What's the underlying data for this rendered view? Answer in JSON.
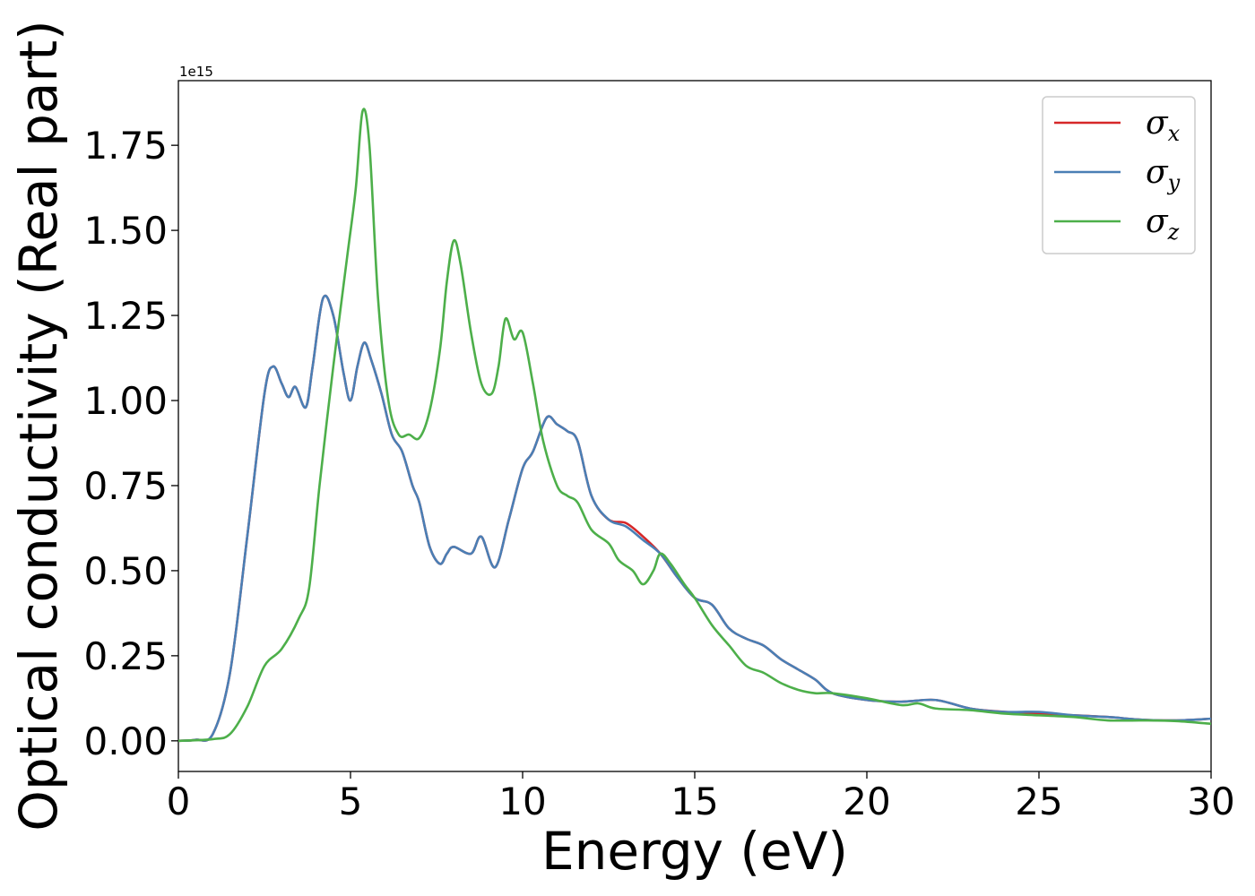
{
  "chart_data": {
    "type": "line",
    "title": "",
    "xlabel": "Energy (eV)",
    "ylabel": "Optical conductivity (Real part)",
    "y_offset_text": "1e15",
    "xlim": [
      0,
      30
    ],
    "ylim": [
      -0.09,
      1.94
    ],
    "x_ticks": [
      0,
      5,
      10,
      15,
      20,
      25,
      30
    ],
    "x_tick_labels": [
      "0",
      "5",
      "10",
      "15",
      "20",
      "25",
      "30"
    ],
    "y_ticks": [
      0.0,
      0.25,
      0.5,
      0.75,
      1.0,
      1.25,
      1.5,
      1.75
    ],
    "y_tick_labels": [
      "0.00",
      "0.25",
      "0.50",
      "0.75",
      "1.00",
      "1.25",
      "1.50",
      "1.75"
    ],
    "grid": false,
    "legend_position": "top-right",
    "series": [
      {
        "name": "σ_x",
        "legend_symbol": "σ",
        "legend_subscript": "x",
        "color": "#d62728",
        "points": [
          [
            0,
            0
          ],
          [
            0.5,
            0.003
          ],
          [
            1.0,
            0.02
          ],
          [
            1.5,
            0.2
          ],
          [
            2.0,
            0.6
          ],
          [
            2.5,
            1.02
          ],
          [
            2.75,
            1.1
          ],
          [
            3.0,
            1.05
          ],
          [
            3.2,
            1.01
          ],
          [
            3.4,
            1.04
          ],
          [
            3.7,
            0.98
          ],
          [
            3.9,
            1.1
          ],
          [
            4.2,
            1.3
          ],
          [
            4.5,
            1.25
          ],
          [
            4.8,
            1.08
          ],
          [
            5.0,
            1.0
          ],
          [
            5.2,
            1.1
          ],
          [
            5.4,
            1.17
          ],
          [
            5.6,
            1.12
          ],
          [
            5.9,
            1.02
          ],
          [
            6.2,
            0.9
          ],
          [
            6.5,
            0.85
          ],
          [
            6.8,
            0.75
          ],
          [
            7.0,
            0.7
          ],
          [
            7.3,
            0.57
          ],
          [
            7.6,
            0.52
          ],
          [
            7.8,
            0.55
          ],
          [
            8.0,
            0.57
          ],
          [
            8.5,
            0.55
          ],
          [
            8.8,
            0.6
          ],
          [
            9.2,
            0.51
          ],
          [
            9.6,
            0.65
          ],
          [
            10.0,
            0.8
          ],
          [
            10.3,
            0.85
          ],
          [
            10.7,
            0.95
          ],
          [
            11.0,
            0.93
          ],
          [
            11.3,
            0.91
          ],
          [
            11.6,
            0.88
          ],
          [
            12.0,
            0.72
          ],
          [
            12.5,
            0.65
          ],
          [
            13.0,
            0.64
          ],
          [
            13.5,
            0.6
          ],
          [
            14.0,
            0.55
          ],
          [
            14.5,
            0.48
          ],
          [
            15.0,
            0.42
          ],
          [
            15.5,
            0.4
          ],
          [
            16.0,
            0.33
          ],
          [
            16.5,
            0.3
          ],
          [
            17.0,
            0.28
          ],
          [
            17.5,
            0.24
          ],
          [
            18.0,
            0.21
          ],
          [
            18.5,
            0.18
          ],
          [
            19.0,
            0.14
          ],
          [
            20.0,
            0.12
          ],
          [
            21.0,
            0.115
          ],
          [
            22.0,
            0.12
          ],
          [
            23.0,
            0.095
          ],
          [
            24.0,
            0.085
          ],
          [
            25.0,
            0.08
          ],
          [
            26.0,
            0.075
          ],
          [
            27.0,
            0.07
          ],
          [
            28.0,
            0.062
          ],
          [
            29.0,
            0.06
          ],
          [
            30.0,
            0.065
          ]
        ]
      },
      {
        "name": "σ_y",
        "legend_symbol": "σ",
        "legend_subscript": "y",
        "color": "#4a7fb5",
        "points": [
          [
            0,
            0
          ],
          [
            0.5,
            0.003
          ],
          [
            1.0,
            0.02
          ],
          [
            1.5,
            0.2
          ],
          [
            2.0,
            0.6
          ],
          [
            2.5,
            1.02
          ],
          [
            2.75,
            1.1
          ],
          [
            3.0,
            1.05
          ],
          [
            3.2,
            1.01
          ],
          [
            3.4,
            1.04
          ],
          [
            3.7,
            0.98
          ],
          [
            3.9,
            1.1
          ],
          [
            4.2,
            1.3
          ],
          [
            4.5,
            1.25
          ],
          [
            4.8,
            1.08
          ],
          [
            5.0,
            1.0
          ],
          [
            5.2,
            1.1
          ],
          [
            5.4,
            1.17
          ],
          [
            5.6,
            1.12
          ],
          [
            5.9,
            1.02
          ],
          [
            6.2,
            0.9
          ],
          [
            6.5,
            0.85
          ],
          [
            6.8,
            0.75
          ],
          [
            7.0,
            0.7
          ],
          [
            7.3,
            0.57
          ],
          [
            7.6,
            0.52
          ],
          [
            7.8,
            0.55
          ],
          [
            8.0,
            0.57
          ],
          [
            8.5,
            0.55
          ],
          [
            8.8,
            0.6
          ],
          [
            9.2,
            0.51
          ],
          [
            9.6,
            0.65
          ],
          [
            10.0,
            0.8
          ],
          [
            10.3,
            0.85
          ],
          [
            10.7,
            0.95
          ],
          [
            11.0,
            0.93
          ],
          [
            11.3,
            0.91
          ],
          [
            11.6,
            0.88
          ],
          [
            12.0,
            0.72
          ],
          [
            12.5,
            0.65
          ],
          [
            13.0,
            0.63
          ],
          [
            13.5,
            0.59
          ],
          [
            14.0,
            0.55
          ],
          [
            14.5,
            0.48
          ],
          [
            15.0,
            0.42
          ],
          [
            15.5,
            0.4
          ],
          [
            16.0,
            0.33
          ],
          [
            16.5,
            0.3
          ],
          [
            17.0,
            0.28
          ],
          [
            17.5,
            0.24
          ],
          [
            18.0,
            0.21
          ],
          [
            18.5,
            0.18
          ],
          [
            19.0,
            0.14
          ],
          [
            20.0,
            0.12
          ],
          [
            21.0,
            0.115
          ],
          [
            22.0,
            0.12
          ],
          [
            23.0,
            0.095
          ],
          [
            24.0,
            0.085
          ],
          [
            25.0,
            0.085
          ],
          [
            26.0,
            0.075
          ],
          [
            27.0,
            0.07
          ],
          [
            28.0,
            0.062
          ],
          [
            29.0,
            0.06
          ],
          [
            30.0,
            0.065
          ]
        ]
      },
      {
        "name": "σ_z",
        "legend_symbol": "σ",
        "legend_subscript": "z",
        "color": "#4daf4a",
        "points": [
          [
            0,
            0
          ],
          [
            1.0,
            0.005
          ],
          [
            1.5,
            0.02
          ],
          [
            2.0,
            0.1
          ],
          [
            2.5,
            0.22
          ],
          [
            3.0,
            0.27
          ],
          [
            3.5,
            0.36
          ],
          [
            3.8,
            0.45
          ],
          [
            4.1,
            0.75
          ],
          [
            4.5,
            1.1
          ],
          [
            4.9,
            1.42
          ],
          [
            5.15,
            1.62
          ],
          [
            5.35,
            1.85
          ],
          [
            5.55,
            1.75
          ],
          [
            5.8,
            1.3
          ],
          [
            6.1,
            1.0
          ],
          [
            6.4,
            0.9
          ],
          [
            6.7,
            0.9
          ],
          [
            7.0,
            0.89
          ],
          [
            7.3,
            0.97
          ],
          [
            7.6,
            1.15
          ],
          [
            7.8,
            1.35
          ],
          [
            8.0,
            1.47
          ],
          [
            8.2,
            1.4
          ],
          [
            8.5,
            1.2
          ],
          [
            8.8,
            1.05
          ],
          [
            9.1,
            1.02
          ],
          [
            9.3,
            1.1
          ],
          [
            9.5,
            1.24
          ],
          [
            9.75,
            1.18
          ],
          [
            10.0,
            1.2
          ],
          [
            10.3,
            1.05
          ],
          [
            10.6,
            0.88
          ],
          [
            11.0,
            0.75
          ],
          [
            11.3,
            0.72
          ],
          [
            11.6,
            0.7
          ],
          [
            12.0,
            0.62
          ],
          [
            12.5,
            0.58
          ],
          [
            12.8,
            0.53
          ],
          [
            13.2,
            0.5
          ],
          [
            13.5,
            0.46
          ],
          [
            13.8,
            0.5
          ],
          [
            14.0,
            0.55
          ],
          [
            14.3,
            0.52
          ],
          [
            14.7,
            0.46
          ],
          [
            15.0,
            0.42
          ],
          [
            15.5,
            0.34
          ],
          [
            16.0,
            0.28
          ],
          [
            16.5,
            0.22
          ],
          [
            17.0,
            0.2
          ],
          [
            17.5,
            0.17
          ],
          [
            18.0,
            0.15
          ],
          [
            18.5,
            0.14
          ],
          [
            19.0,
            0.14
          ],
          [
            20.0,
            0.125
          ],
          [
            21.0,
            0.105
          ],
          [
            21.5,
            0.11
          ],
          [
            22.0,
            0.095
          ],
          [
            23.0,
            0.09
          ],
          [
            24.0,
            0.08
          ],
          [
            25.0,
            0.075
          ],
          [
            26.0,
            0.07
          ],
          [
            27.0,
            0.06
          ],
          [
            28.0,
            0.06
          ],
          [
            29.0,
            0.058
          ],
          [
            30.0,
            0.05
          ]
        ]
      }
    ]
  }
}
